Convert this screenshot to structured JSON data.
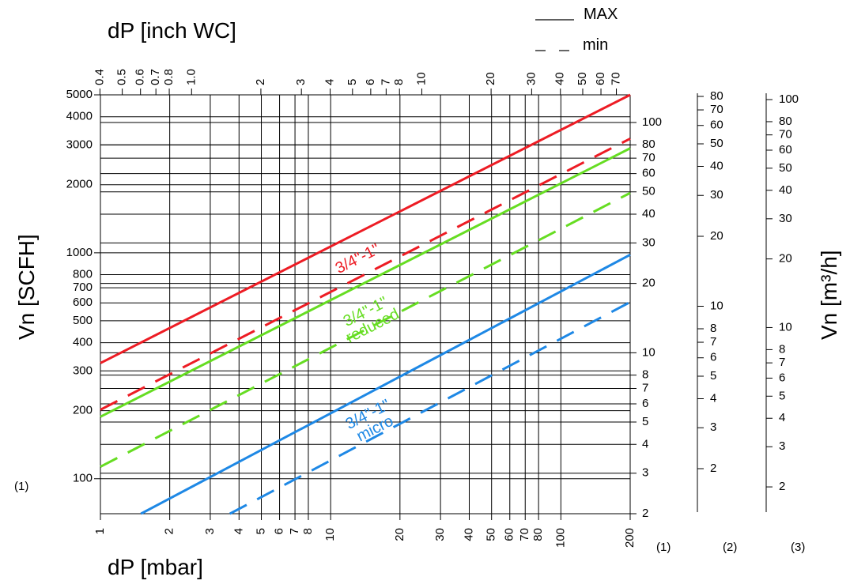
{
  "chart_data": {
    "type": "line",
    "scale": "log-log",
    "grid": true,
    "top_axis": {
      "label": "dP [inch WC]",
      "ticks": [
        "0.4",
        "0.5",
        "0.6",
        "0.7",
        "0.8",
        "1.0",
        "2",
        "3",
        "4",
        "5",
        "6",
        "7",
        "8",
        "10",
        "20",
        "30",
        "40",
        "50",
        "60",
        "70"
      ]
    },
    "bottom_axis": {
      "label": "dP [mbar]",
      "range": [
        1,
        200
      ],
      "ticks": [
        "1",
        "2",
        "3",
        "4",
        "5",
        "6",
        "7",
        "8",
        "10",
        "20",
        "30",
        "40",
        "50",
        "60",
        "70",
        "80",
        "100",
        "200"
      ]
    },
    "left_axis": {
      "label": "Vn [SCFH]",
      "range": [
        70,
        5000
      ],
      "ticks": [
        "5000",
        "4000",
        "3000",
        "2000",
        "1000",
        "800",
        "700",
        "600",
        "500",
        "400",
        "300",
        "200",
        "100"
      ]
    },
    "scale_1": {
      "ticks": [
        "100",
        "80",
        "70",
        "60",
        "50",
        "40",
        "30",
        "20",
        "10",
        "8",
        "7",
        "6",
        "5",
        "4",
        "3",
        "2"
      ]
    },
    "scale_2": {
      "ticks": [
        "80",
        "70",
        "60",
        "50",
        "40",
        "30",
        "20",
        "10",
        "8",
        "7",
        "6",
        "5",
        "4",
        "3",
        "2"
      ]
    },
    "scale_3": {
      "label": "Vn [m³/h]",
      "ticks": [
        "100",
        "80",
        "70",
        "60",
        "50",
        "40",
        "30",
        "20",
        "10",
        "8",
        "7",
        "6",
        "5",
        "4",
        "3",
        "2"
      ]
    },
    "column_labels": [
      "(1)",
      "(1)",
      "(2)",
      "(3)"
    ],
    "legend": {
      "placement": "top-right",
      "max": "MAX",
      "min": "min"
    },
    "series": [
      {
        "name": "3/4\"-1\"",
        "kind": "MAX",
        "color": "#ed1c24",
        "x": [
          1,
          200
        ],
        "y": [
          325,
          5000
        ]
      },
      {
        "name": "3/4\"-1\"",
        "kind": "min",
        "color": "#ed1c24",
        "x": [
          1,
          200
        ],
        "y": [
          202,
          3200
        ]
      },
      {
        "name": "3/4\"-1\" reduced",
        "kind": "MAX",
        "color": "#66dd22",
        "x": [
          1,
          200
        ],
        "y": [
          188,
          2900
        ]
      },
      {
        "name": "3/4\"-1\" reduced",
        "kind": "min",
        "color": "#66dd22",
        "x": [
          1,
          200
        ],
        "y": [
          113,
          1840
        ]
      },
      {
        "name": "3/4\"-1\" micro",
        "kind": "MAX",
        "color": "#1e88e5",
        "x": [
          1.5,
          200
        ],
        "y": [
          70,
          980
        ]
      },
      {
        "name": "3/4\"-1\" micro",
        "kind": "min",
        "color": "#1e88e5",
        "x": [
          3.65,
          200
        ],
        "y": [
          70,
          605
        ]
      }
    ],
    "series_labels": [
      {
        "lines": [
          "3/4\"-1\""
        ],
        "color": "#ed1c24"
      },
      {
        "lines": [
          "3/4\"-1\"",
          "reduced"
        ],
        "color": "#66dd22"
      },
      {
        "lines": [
          "3/4\"-1\"",
          "micro"
        ],
        "color": "#1e88e5"
      }
    ]
  }
}
